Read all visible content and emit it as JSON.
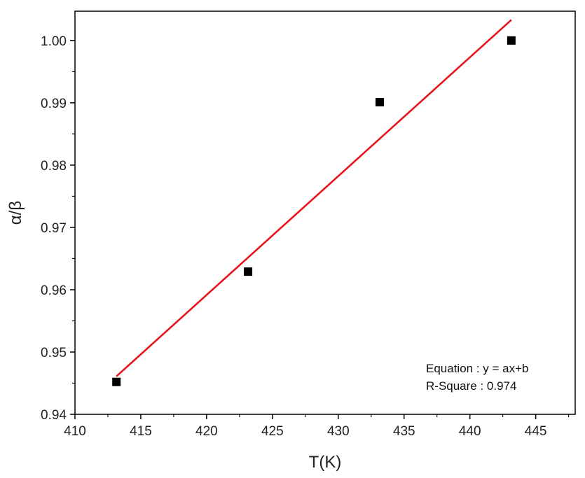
{
  "chart_data": {
    "type": "scatter",
    "xlabel": "T(K)",
    "ylabel": "α/β",
    "xlim": [
      410,
      448
    ],
    "ylim": [
      0.94,
      1.0047
    ],
    "xticks": [
      410,
      415,
      420,
      425,
      430,
      435,
      440,
      445
    ],
    "yticks": [
      0.94,
      0.95,
      0.96,
      0.97,
      0.98,
      0.99,
      1.0
    ],
    "xtick_labels": [
      "410",
      "415",
      "420",
      "425",
      "430",
      "435",
      "440",
      "445"
    ],
    "ytick_labels": [
      "0.94",
      "0.95",
      "0.96",
      "0.97",
      "0.98",
      "0.99",
      "1.00"
    ],
    "grid": false,
    "series": [
      {
        "type": "scatter",
        "marker": "square",
        "color": "#000000",
        "x": [
          413.15,
          423.15,
          433.15,
          443.15
        ],
        "y": [
          0.9452,
          0.9629,
          0.9901,
          1.0
        ]
      },
      {
        "type": "line",
        "color": "#e8141b",
        "x": [
          413.15,
          443.15
        ],
        "y": [
          0.9461,
          1.0033
        ]
      }
    ],
    "annotations": [
      "Equation : y = ax+b",
      "R-Square : 0.974"
    ]
  }
}
